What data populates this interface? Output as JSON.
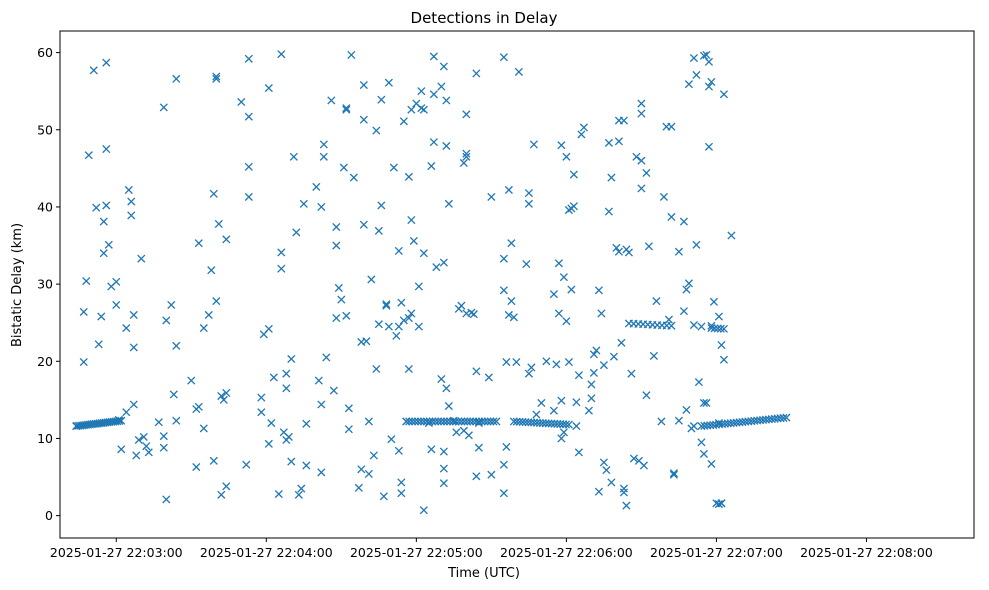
{
  "chart_data": {
    "type": "scatter",
    "title": "Detections in Delay",
    "xlabel": "Time (UTC)",
    "ylabel": "Bistatic Delay (km)",
    "marker": "x",
    "color": "#1f77b4",
    "xlim_seconds": [
      -22.5,
      343
    ],
    "ylim": [
      -2.9,
      62.8
    ],
    "x_ticks": [
      {
        "t": 0,
        "label": "2025-01-27 22:03:00"
      },
      {
        "t": 60,
        "label": "2025-01-27 22:04:00"
      },
      {
        "t": 120,
        "label": "2025-01-27 22:05:00"
      },
      {
        "t": 180,
        "label": "2025-01-27 22:06:00"
      },
      {
        "t": 240,
        "label": "2025-01-27 22:07:00"
      },
      {
        "t": 300,
        "label": "2025-01-27 22:08:00"
      }
    ],
    "y_ticks": [
      0,
      10,
      20,
      30,
      40,
      50,
      60
    ],
    "x_units": "seconds after 2025-01-27 22:03:00 UTC",
    "tracks": [
      {
        "t_start": -16,
        "t_end": 2,
        "y_start": 11.6,
        "y_end": 12.3,
        "count": 24
      },
      {
        "t_start": 116,
        "t_end": 152,
        "y_start": 12.2,
        "y_end": 12.2,
        "count": 32
      },
      {
        "t_start": 159,
        "t_end": 181,
        "y_start": 12.2,
        "y_end": 11.8,
        "count": 20
      },
      {
        "t_start": 234,
        "t_end": 268,
        "y_start": 11.6,
        "y_end": 12.7,
        "count": 30
      },
      {
        "t_start": 205,
        "t_end": 222,
        "y_start": 24.9,
        "y_end": 24.6,
        "count": 10
      },
      {
        "t_start": 238,
        "t_end": 243,
        "y_start": 24.3,
        "y_end": 24.2,
        "count": 5
      }
    ],
    "points": [
      [
        -16,
        11.6
      ],
      [
        -13,
        19.9
      ],
      [
        -13,
        26.4
      ],
      [
        -12,
        30.4
      ],
      [
        -11,
        46.7
      ],
      [
        -9,
        57.7
      ],
      [
        -8,
        39.9
      ],
      [
        -7,
        22.2
      ],
      [
        -6,
        25.8
      ],
      [
        -5,
        34.0
      ],
      [
        -5,
        38.1
      ],
      [
        -4,
        40.2
      ],
      [
        -4,
        58.7
      ],
      [
        -4,
        47.5
      ],
      [
        -3,
        35.1
      ],
      [
        -2,
        29.7
      ],
      [
        0,
        30.3
      ],
      [
        0,
        27.3
      ],
      [
        1,
        12.4
      ],
      [
        2,
        8.6
      ],
      [
        4,
        24.3
      ],
      [
        4,
        13.4
      ],
      [
        5,
        42.2
      ],
      [
        6,
        38.9
      ],
      [
        6,
        40.7
      ],
      [
        7,
        14.4
      ],
      [
        7,
        21.8
      ],
      [
        7,
        26.0
      ],
      [
        8,
        7.8
      ],
      [
        9,
        9.8
      ],
      [
        10,
        33.3
      ],
      [
        11,
        10.2
      ],
      [
        12,
        9.0
      ],
      [
        13,
        8.2
      ],
      [
        17,
        12.1
      ],
      [
        19,
        52.9
      ],
      [
        19,
        8.8
      ],
      [
        19,
        10.3
      ],
      [
        20,
        25.3
      ],
      [
        20,
        2.1
      ],
      [
        22,
        27.3
      ],
      [
        23,
        15.7
      ],
      [
        24,
        56.6
      ],
      [
        24,
        22.0
      ],
      [
        24,
        12.3
      ],
      [
        30,
        17.5
      ],
      [
        32,
        13.8
      ],
      [
        32,
        6.3
      ],
      [
        33,
        14.1
      ],
      [
        33,
        35.3
      ],
      [
        35,
        11.3
      ],
      [
        35,
        24.3
      ],
      [
        37,
        26.0
      ],
      [
        38,
        31.8
      ],
      [
        39,
        41.7
      ],
      [
        39,
        7.1
      ],
      [
        40,
        56.9
      ],
      [
        40,
        56.6
      ],
      [
        40,
        27.8
      ],
      [
        41,
        37.8
      ],
      [
        42,
        2.7
      ],
      [
        42,
        15.5
      ],
      [
        43,
        15.0
      ],
      [
        44,
        3.8
      ],
      [
        44,
        15.9
      ],
      [
        44,
        35.8
      ],
      [
        50,
        53.6
      ],
      [
        52,
        6.6
      ],
      [
        53,
        59.2
      ],
      [
        53,
        45.2
      ],
      [
        53,
        41.3
      ],
      [
        53,
        51.7
      ],
      [
        58,
        13.4
      ],
      [
        58,
        15.3
      ],
      [
        59,
        23.5
      ],
      [
        61,
        9.3
      ],
      [
        61,
        24.2
      ],
      [
        61,
        55.4
      ],
      [
        62,
        12.0
      ],
      [
        63,
        17.9
      ],
      [
        65,
        2.8
      ],
      [
        66,
        59.8
      ],
      [
        66,
        34.1
      ],
      [
        66,
        32.0
      ],
      [
        67,
        10.8
      ],
      [
        68,
        16.5
      ],
      [
        68,
        18.4
      ],
      [
        68,
        9.8
      ],
      [
        69,
        10.2
      ],
      [
        70,
        20.3
      ],
      [
        70,
        7.0
      ],
      [
        71,
        46.5
      ],
      [
        72,
        36.7
      ],
      [
        73,
        2.7
      ],
      [
        74,
        3.5
      ],
      [
        75,
        40.4
      ],
      [
        76,
        11.9
      ],
      [
        76,
        6.5
      ],
      [
        80,
        42.6
      ],
      [
        81,
        17.5
      ],
      [
        82,
        5.6
      ],
      [
        82,
        14.4
      ],
      [
        82,
        40.0
      ],
      [
        83,
        48.1
      ],
      [
        83,
        46.5
      ],
      [
        84,
        20.5
      ],
      [
        86,
        53.8
      ],
      [
        87,
        16.2
      ],
      [
        88,
        37.4
      ],
      [
        88,
        35.0
      ],
      [
        88,
        25.6
      ],
      [
        89,
        29.5
      ],
      [
        90,
        28.0
      ],
      [
        91,
        45.1
      ],
      [
        92,
        25.9
      ],
      [
        92,
        52.6
      ],
      [
        92,
        52.8
      ],
      [
        93,
        11.2
      ],
      [
        93,
        13.9
      ],
      [
        94,
        59.7
      ],
      [
        95,
        43.8
      ],
      [
        97,
        3.6
      ],
      [
        98,
        6.0
      ],
      [
        98,
        22.5
      ],
      [
        99,
        55.8
      ],
      [
        99,
        51.3
      ],
      [
        99,
        37.7
      ],
      [
        100,
        22.6
      ],
      [
        101,
        5.4
      ],
      [
        101,
        12.2
      ],
      [
        102,
        30.6
      ],
      [
        103,
        7.8
      ],
      [
        104,
        49.9
      ],
      [
        104,
        19.0
      ],
      [
        105,
        24.8
      ],
      [
        105,
        36.9
      ],
      [
        106,
        40.2
      ],
      [
        106,
        53.9
      ],
      [
        107,
        2.5
      ],
      [
        108,
        27.4
      ],
      [
        108,
        27.2
      ],
      [
        109,
        24.5
      ],
      [
        109,
        56.1
      ],
      [
        110,
        9.9
      ],
      [
        111,
        45.1
      ],
      [
        112,
        23.3
      ],
      [
        113,
        24.5
      ],
      [
        113,
        34.3
      ],
      [
        113,
        8.4
      ],
      [
        114,
        2.9
      ],
      [
        114,
        4.3
      ],
      [
        114,
        27.6
      ],
      [
        115,
        51.1
      ],
      [
        115,
        25.3
      ],
      [
        116,
        12.2
      ],
      [
        117,
        19.0
      ],
      [
        117,
        43.9
      ],
      [
        117,
        25.6
      ],
      [
        118,
        52.6
      ],
      [
        118,
        26.2
      ],
      [
        118,
        38.3
      ],
      [
        119,
        35.6
      ],
      [
        120,
        53.4
      ],
      [
        121,
        29.7
      ],
      [
        121,
        24.5
      ],
      [
        122,
        52.8
      ],
      [
        122,
        55.0
      ],
      [
        123,
        0.7
      ],
      [
        123,
        34.0
      ],
      [
        123,
        52.6
      ],
      [
        125,
        12.0
      ],
      [
        126,
        45.3
      ],
      [
        126,
        8.6
      ],
      [
        127,
        54.6
      ],
      [
        127,
        59.5
      ],
      [
        127,
        48.4
      ],
      [
        128,
        32.2
      ],
      [
        130,
        55.6
      ],
      [
        130,
        17.7
      ],
      [
        131,
        4.2
      ],
      [
        131,
        6.1
      ],
      [
        131,
        58.2
      ],
      [
        131,
        32.8
      ],
      [
        131,
        8.3
      ],
      [
        132,
        53.8
      ],
      [
        132,
        47.9
      ],
      [
        132,
        16.5
      ],
      [
        133,
        40.4
      ],
      [
        133,
        14.2
      ],
      [
        135,
        12.3
      ],
      [
        136,
        10.8
      ],
      [
        137,
        26.8
      ],
      [
        138,
        27.2
      ],
      [
        139,
        45.7
      ],
      [
        139,
        11.0
      ],
      [
        140,
        52.0
      ],
      [
        140,
        26.2
      ],
      [
        140,
        46.9
      ],
      [
        140,
        46.5
      ],
      [
        141,
        10.4
      ],
      [
        142,
        26.3
      ],
      [
        143,
        26.1
      ],
      [
        144,
        57.3
      ],
      [
        144,
        5.1
      ],
      [
        144,
        18.7
      ],
      [
        145,
        12.0
      ],
      [
        145,
        8.8
      ],
      [
        149,
        17.9
      ],
      [
        150,
        5.3
      ],
      [
        150,
        41.3
      ],
      [
        155,
        59.4
      ],
      [
        155,
        29.2
      ],
      [
        155,
        6.6
      ],
      [
        155,
        33.3
      ],
      [
        155,
        2.9
      ],
      [
        156,
        8.9
      ],
      [
        156,
        19.9
      ],
      [
        157,
        42.2
      ],
      [
        157,
        26.0
      ],
      [
        158,
        35.3
      ],
      [
        158,
        27.8
      ],
      [
        159,
        25.7
      ],
      [
        160,
        19.9
      ],
      [
        161,
        57.5
      ],
      [
        164,
        32.6
      ],
      [
        165,
        18.4
      ],
      [
        165,
        41.8
      ],
      [
        165,
        40.4
      ],
      [
        166,
        19.2
      ],
      [
        167,
        48.1
      ],
      [
        168,
        13.1
      ],
      [
        170,
        14.6
      ],
      [
        172,
        20.0
      ],
      [
        175,
        28.7
      ],
      [
        175,
        13.6
      ],
      [
        176,
        19.6
      ],
      [
        177,
        26.2
      ],
      [
        177,
        32.7
      ],
      [
        178,
        14.9
      ],
      [
        178,
        10.0
      ],
      [
        178,
        48.0
      ],
      [
        179,
        30.9
      ],
      [
        179,
        10.8
      ],
      [
        180,
        25.2
      ],
      [
        180,
        46.5
      ],
      [
        181,
        19.9
      ],
      [
        181,
        39.6
      ],
      [
        182,
        39.8
      ],
      [
        182,
        29.3
      ],
      [
        183,
        44.2
      ],
      [
        183,
        40.1
      ],
      [
        184,
        14.7
      ],
      [
        184,
        11.6
      ],
      [
        185,
        8.2
      ],
      [
        185,
        18.2
      ],
      [
        186,
        49.4
      ],
      [
        187,
        50.3
      ],
      [
        189,
        13.6
      ],
      [
        190,
        15.2
      ],
      [
        190,
        17.0
      ],
      [
        191,
        20.9
      ],
      [
        191,
        18.5
      ],
      [
        192,
        21.4
      ],
      [
        193,
        3.1
      ],
      [
        193,
        29.2
      ],
      [
        194,
        26.2
      ],
      [
        195,
        19.5
      ],
      [
        195,
        6.9
      ],
      [
        196,
        5.9
      ],
      [
        197,
        39.4
      ],
      [
        197,
        48.3
      ],
      [
        198,
        4.3
      ],
      [
        198,
        43.8
      ],
      [
        199,
        20.6
      ],
      [
        200,
        34.7
      ],
      [
        201,
        48.5
      ],
      [
        201,
        51.2
      ],
      [
        201,
        34.2
      ],
      [
        202,
        22.4
      ],
      [
        203,
        3.5
      ],
      [
        203,
        3.0
      ],
      [
        203,
        51.2
      ],
      [
        204,
        34.5
      ],
      [
        204,
        1.3
      ],
      [
        205,
        34.1
      ],
      [
        206,
        18.4
      ],
      [
        207,
        7.4
      ],
      [
        208,
        46.5
      ],
      [
        209,
        7.1
      ],
      [
        210,
        53.4
      ],
      [
        210,
        52.1
      ],
      [
        210,
        46.0
      ],
      [
        210,
        42.4
      ],
      [
        211,
        6.5
      ],
      [
        212,
        44.4
      ],
      [
        212,
        15.6
      ],
      [
        213,
        34.9
      ],
      [
        215,
        20.7
      ],
      [
        216,
        27.8
      ],
      [
        218,
        12.2
      ],
      [
        219,
        41.3
      ],
      [
        220,
        50.4
      ],
      [
        221,
        25.4
      ],
      [
        222,
        38.7
      ],
      [
        222,
        50.4
      ],
      [
        223,
        5.3
      ],
      [
        223,
        5.5
      ],
      [
        225,
        34.2
      ],
      [
        225,
        12.3
      ],
      [
        227,
        38.1
      ],
      [
        227,
        26.5
      ],
      [
        228,
        29.3
      ],
      [
        228,
        13.7
      ],
      [
        229,
        55.9
      ],
      [
        229,
        30.1
      ],
      [
        230,
        11.3
      ],
      [
        231,
        59.3
      ],
      [
        231,
        24.7
      ],
      [
        231,
        11.6
      ],
      [
        232,
        35.1
      ],
      [
        232,
        57.1
      ],
      [
        233,
        17.3
      ],
      [
        234,
        9.5
      ],
      [
        234,
        24.5
      ],
      [
        235,
        59.6
      ],
      [
        235,
        14.6
      ],
      [
        235,
        8.0
      ],
      [
        236,
        14.6
      ],
      [
        236,
        59.7
      ],
      [
        237,
        47.8
      ],
      [
        237,
        55.6
      ],
      [
        237,
        58.8
      ],
      [
        238,
        6.7
      ],
      [
        238,
        56.2
      ],
      [
        238,
        24.6
      ],
      [
        239,
        27.7
      ],
      [
        240,
        1.6
      ],
      [
        241,
        12.0
      ],
      [
        241,
        25.8
      ],
      [
        241,
        1.5
      ],
      [
        242,
        1.6
      ],
      [
        242,
        22.1
      ],
      [
        242,
        1.6
      ],
      [
        243,
        54.6
      ],
      [
        243,
        20.2
      ],
      [
        246,
        36.3
      ]
    ]
  }
}
